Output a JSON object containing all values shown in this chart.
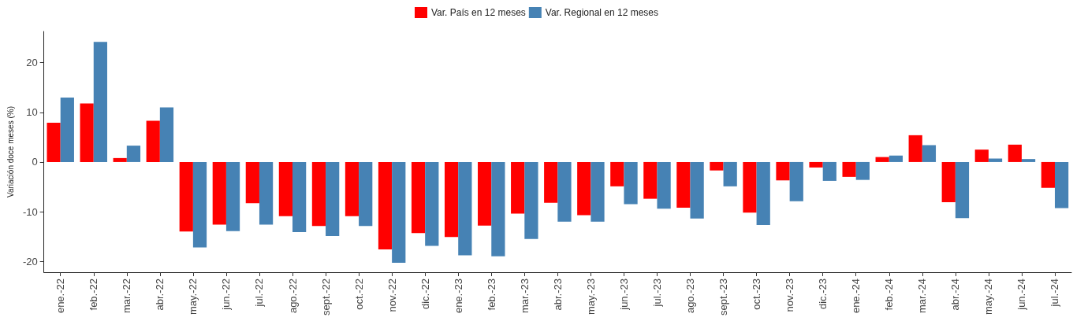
{
  "chart_data": {
    "type": "bar",
    "ylabel": "Variación doce meses (%)",
    "categories": [
      "ene.-22",
      "feb.-22",
      "mar.-22",
      "abr.-22",
      "may.-22",
      "jun.-22",
      "jul.-22",
      "ago.-22",
      "sept.-22",
      "oct.-22",
      "nov.-22",
      "dic.-22",
      "ene.-23",
      "feb.-23",
      "mar.-23",
      "abr.-23",
      "may.-23",
      "jun.-23",
      "jul.-23",
      "ago.-23",
      "sept.-23",
      "oct.-23",
      "nov.-23",
      "dic.-23",
      "ene.-24",
      "feb.-24",
      "mar.-24",
      "abr.-24",
      "may.-24",
      "jun.-24",
      "jul.-24"
    ],
    "series": [
      {
        "name": "Var. País en 12 meses",
        "color": "#ff0000",
        "values": [
          7.9,
          11.8,
          0.8,
          8.3,
          -14.0,
          -12.6,
          -8.3,
          -10.9,
          -12.9,
          -10.9,
          -17.6,
          -14.3,
          -15.1,
          -12.8,
          -10.4,
          -8.2,
          -10.7,
          -4.9,
          -7.4,
          -9.2,
          -1.7,
          -10.2,
          -3.7,
          -1.1,
          -3.0,
          1.0,
          5.4,
          -8.1,
          2.5,
          3.5,
          -5.2
        ]
      },
      {
        "name": "Var. Regional en 12 meses",
        "color": "#4682b4",
        "values": [
          13.0,
          24.2,
          3.3,
          11.0,
          -17.2,
          -13.9,
          -12.6,
          -14.1,
          -14.9,
          -12.9,
          -20.3,
          -16.9,
          -18.8,
          -19.0,
          -15.5,
          -12.0,
          -12.0,
          -8.5,
          -9.4,
          -11.4,
          -4.9,
          -12.7,
          -7.9,
          -3.8,
          -3.6,
          1.3,
          3.4,
          -11.3,
          0.7,
          0.6,
          -9.3
        ]
      }
    ],
    "ylim": [
      -22.2,
      26.3
    ],
    "yticks": [
      -20,
      -10,
      0,
      10,
      20
    ],
    "grid": false,
    "legend": "top"
  }
}
